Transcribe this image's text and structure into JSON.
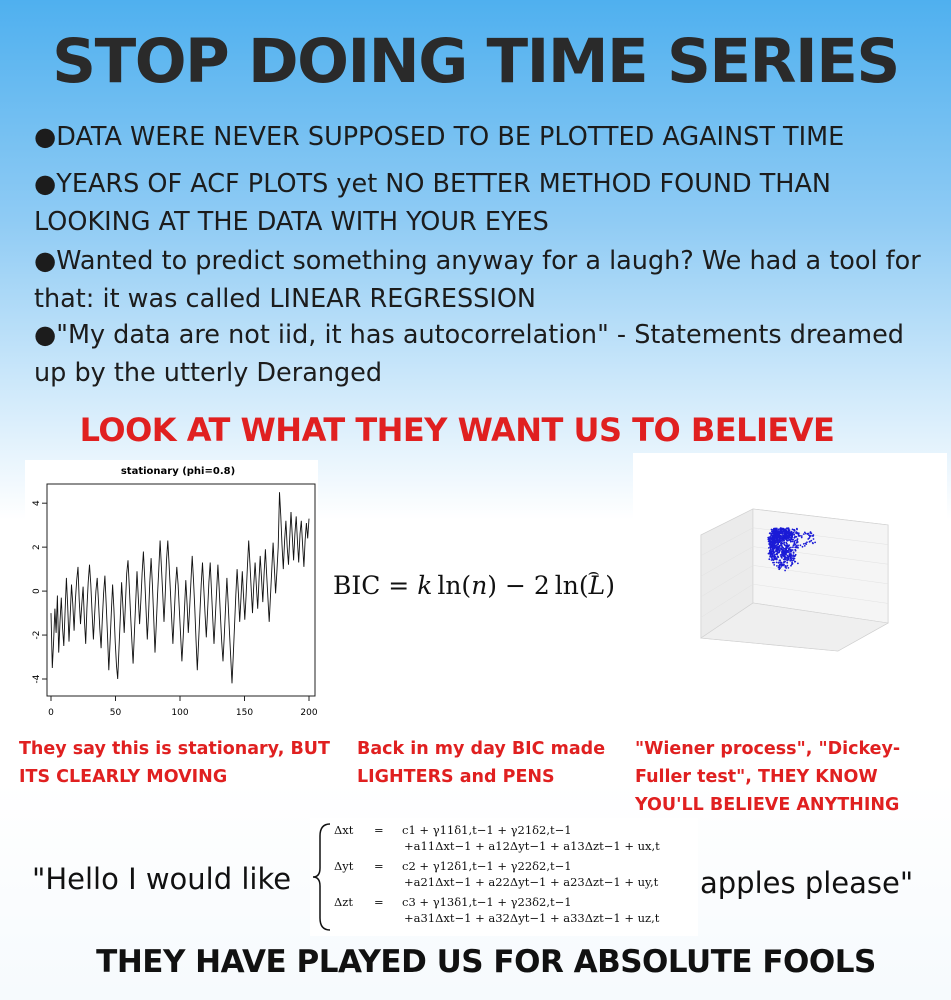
{
  "title": "STOP DOING TIME SERIES",
  "bullets": [
    "●DATA WERE NEVER SUPPOSED TO BE PLOTTED AGAINST TIME",
    "●YEARS OF ACF PLOTS yet NO BETTER METHOD FOUND THAN LOOKING AT THE DATA WITH YOUR EYES",
    "●Wanted to predict something anyway for a laugh? We had a tool for that: it was called LINEAR REGRESSION",
    "●\"My data are not iid, it has autocorrelation\" - Statements dreamed up by the utterly Deranged"
  ],
  "look_heading": "LOOK AT WHAT THEY WANT US TO BELIEVE",
  "stationary_plot": {
    "title": "stationary (phi=0.8)",
    "x_ticks": [
      "0",
      "50",
      "100",
      "150",
      "200"
    ],
    "y_ticks": [
      "-4",
      "-2",
      "0",
      "2",
      "4"
    ],
    "xlim": [
      0,
      200
    ],
    "ylim": [
      -4.5,
      4.6
    ],
    "series": [
      -1.0,
      -3.5,
      -2.3,
      -0.8,
      -1.9,
      -0.2,
      -2.8,
      -1.4,
      -0.3,
      -1.7,
      -2.5,
      -0.9,
      0.6,
      -0.7,
      -2.3,
      -1.0,
      0.3,
      -0.6,
      -1.8,
      -0.4,
      0.5,
      1.1,
      -0.4,
      -1.5,
      -0.6,
      0.2,
      -1.3,
      -2.4,
      -0.8,
      0.4,
      1.2,
      0.3,
      -1.0,
      -2.2,
      -1.1,
      0.0,
      0.6,
      -0.5,
      -1.7,
      -2.6,
      -1.3,
      -0.1,
      0.7,
      -0.6,
      -2.0,
      -3.6,
      -2.4,
      -1.0,
      0.3,
      -0.8,
      -2.3,
      -3.4,
      -4.0,
      -2.6,
      -1.2,
      0.4,
      -0.7,
      -1.9,
      -0.6,
      0.8,
      1.4,
      0.2,
      -1.1,
      -2.3,
      -3.3,
      -1.9,
      -0.5,
      0.9,
      -0.3,
      -1.5,
      -0.4,
      0.8,
      1.8,
      0.6,
      -0.8,
      -2.2,
      -1.0,
      0.4,
      1.5,
      0.3,
      -1.2,
      -2.8,
      -1.5,
      -0.2,
      1.0,
      2.3,
      1.1,
      -0.1,
      -1.4,
      -0.2,
      1.4,
      2.3,
      1.2,
      0.0,
      -1.3,
      -2.4,
      -1.1,
      0.2,
      1.1,
      0.3,
      -0.9,
      -2.0,
      -3.2,
      -2.1,
      -0.8,
      0.5,
      -0.6,
      -1.9,
      -0.8,
      0.4,
      1.6,
      0.5,
      -0.8,
      -2.2,
      -3.6,
      -2.3,
      -1.0,
      0.3,
      1.3,
      0.2,
      -1.0,
      -2.1,
      -0.9,
      0.4,
      1.3,
      0.1,
      -1.2,
      -2.4,
      -1.2,
      0.0,
      1.2,
      0.2,
      -1.1,
      -2.3,
      -3.2,
      -2.0,
      -0.7,
      0.6,
      -0.5,
      -1.8,
      -3.0,
      -4.2,
      -2.9,
      -1.5,
      -0.2,
      1.0,
      -0.1,
      -1.4,
      -0.3,
      0.9,
      -0.2,
      -1.3,
      -0.2,
      1.1,
      2.3,
      1.2,
      0.1,
      -1.0,
      0.3,
      1.3,
      0.2,
      -0.8,
      0.4,
      1.6,
      0.6,
      -0.5,
      0.8,
      1.9,
      0.8,
      -0.3,
      -1.4,
      -0.2,
      1.0,
      2.2,
      1.1,
      -0.1,
      0.9,
      2.0,
      4.5,
      3.4,
      2.1,
      1.0,
      2.3,
      3.2,
      2.0,
      1.2,
      2.4,
      3.6,
      2.5,
      1.4,
      2.6,
      3.4,
      2.3,
      1.3,
      2.6,
      3.2,
      2.1,
      1.1,
      2.3,
      3.1,
      2.4,
      3.3
    ]
  },
  "bic_formula": "BIC = k ln(n) − 2 ln(L̂)",
  "captions": {
    "stationary": "They say this is stationary, BUT ITS CLEARLY MOVING",
    "bic": "Back in my day BIC made LIGHTERS and PENS",
    "wiener": "\"Wiener process\", \"Dickey-Fuller test\", THEY KNOW YOU'LL BELIEVE ANYTHING"
  },
  "hello_text": "\"Hello I would like",
  "apples_text": "apples please\"",
  "var_equations": [
    {
      "lhs": "Δx",
      "sub": "t",
      "line1": "c1 + γ11δ1,t−1 + γ21δ2,t−1",
      "line2": "+a11Δxt−1 + a12Δyt−1 + a13Δzt−1 + ux,t"
    },
    {
      "lhs": "Δy",
      "sub": "t",
      "line1": "c2 + γ12δ1,t−1 + γ22δ2,t−1",
      "line2": "+a21Δxt−1 + a22Δyt−1 + a23Δzt−1 + uy,t"
    },
    {
      "lhs": "Δz",
      "sub": "t",
      "line1": "c3 + γ13δ1,t−1 + γ23δ2,t−1",
      "line2": "+a31Δxt−1 + a32Δyt−1 + a33Δzt−1 + uz,t"
    }
  ],
  "bottom_text": "THEY HAVE PLAYED US FOR ABSOLUTE FOOLS",
  "colors": {
    "accent_red": "#e02020",
    "background_top": "#4fb0ef",
    "wiener_points": "#1b1bd6"
  }
}
